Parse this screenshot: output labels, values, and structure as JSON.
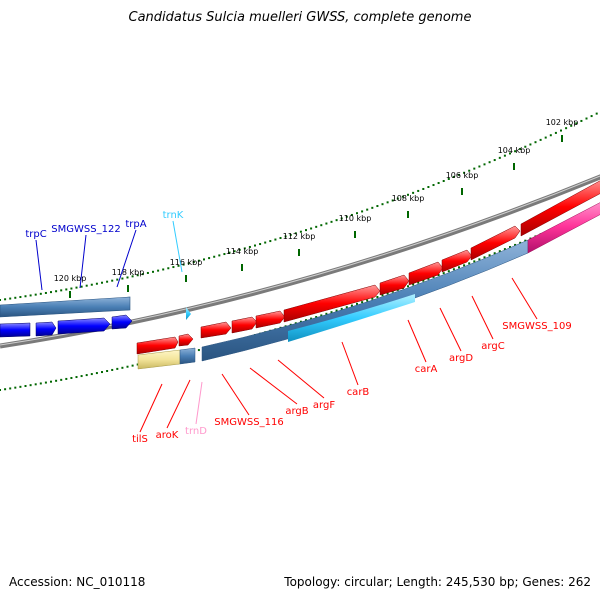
{
  "title": "Candidatus Sulcia muelleri GWSS, complete genome",
  "footer": {
    "accession": "Accession: NC_010118",
    "topology": "Topology: circular; Length: 245,530 bp; Genes: 262"
  },
  "colors": {
    "forward_cds": "#ff0000",
    "reverse_cds": "#0000ff",
    "trna": "#33ccff",
    "trna_pink": "#ff99cc",
    "gc_track": "#4a7fb5",
    "tick": "#006600",
    "backbone": "#777777"
  },
  "kbp_ticks": [
    {
      "label": "102 kbp"
    },
    {
      "label": "104 kbp"
    },
    {
      "label": "106 kbp"
    },
    {
      "label": "108 kbp"
    },
    {
      "label": "110 kbp"
    },
    {
      "label": "112 kbp"
    },
    {
      "label": "114 kbp"
    },
    {
      "label": "116 kbp"
    },
    {
      "label": "118 kbp"
    },
    {
      "label": "120 kbp"
    }
  ],
  "top_genes": [
    {
      "label": "trpC",
      "color": "#0000cc"
    },
    {
      "label": "SMGWSS_122",
      "color": "#0000cc"
    },
    {
      "label": "trpA",
      "color": "#0000cc"
    },
    {
      "label": "trnK",
      "color": "#33ccff"
    }
  ],
  "bottom_genes": [
    {
      "label": "tilS",
      "color": "#ff0000"
    },
    {
      "label": "aroK",
      "color": "#ff0000"
    },
    {
      "label": "trnD",
      "color": "#ff99cc"
    },
    {
      "label": "SMGWSS_116",
      "color": "#ff0000"
    },
    {
      "label": "argB",
      "color": "#ff0000"
    },
    {
      "label": "argF",
      "color": "#ff0000"
    },
    {
      "label": "carB",
      "color": "#ff0000"
    },
    {
      "label": "carA",
      "color": "#ff0000"
    },
    {
      "label": "argD",
      "color": "#ff0000"
    },
    {
      "label": "argC",
      "color": "#ff0000"
    },
    {
      "label": "SMGWSS_109",
      "color": "#ff0000"
    }
  ]
}
